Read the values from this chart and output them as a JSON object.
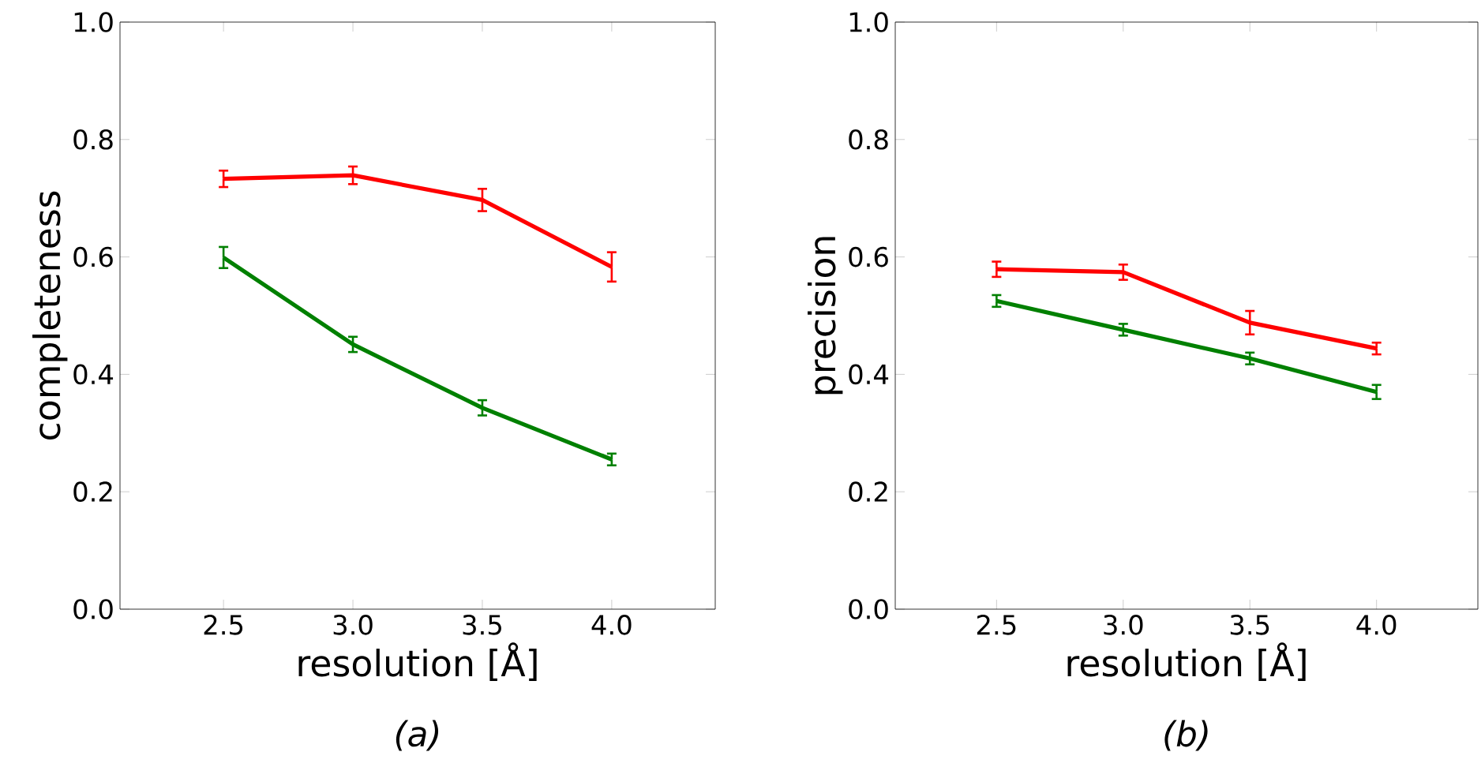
{
  "chart_data": [
    {
      "type": "line",
      "xlabel": "resolution [Å]",
      "ylabel": "completeness",
      "annotations": [
        "(a)"
      ],
      "x": [
        2.5,
        3.0,
        3.5,
        4.0
      ],
      "xlim": [
        2.1,
        4.4
      ],
      "ylim": [
        0,
        1
      ],
      "xticks": [
        {
          "value": 2.5,
          "label": "2.5"
        },
        {
          "value": 3.0,
          "label": "3.0"
        },
        {
          "value": 3.5,
          "label": "3.5"
        },
        {
          "value": 4.0,
          "label": "4.0"
        }
      ],
      "yticks": [
        {
          "value": 0,
          "label": "0.0"
        },
        {
          "value": 0.2,
          "label": "0.2"
        },
        {
          "value": 0.4,
          "label": "0.4"
        },
        {
          "value": 0.6,
          "label": "0.6"
        },
        {
          "value": 0.8,
          "label": "0.8"
        },
        {
          "value": 1.0,
          "label": "1.0"
        }
      ],
      "grid": false,
      "marker": "none",
      "line_style": "solid",
      "series": [
        {
          "color": "#ff0000",
          "values": [
            0.733,
            0.739,
            0.697,
            0.583
          ],
          "errors": [
            0.014,
            0.015,
            0.019,
            0.025
          ]
        },
        {
          "color": "#008000",
          "values": [
            0.599,
            0.451,
            0.343,
            0.255
          ],
          "errors": [
            0.018,
            0.013,
            0.013,
            0.01
          ]
        }
      ]
    },
    {
      "type": "line",
      "xlabel": "resolution [Å]",
      "ylabel": "precision",
      "annotations": [
        "(b)"
      ],
      "x": [
        2.5,
        3.0,
        3.5,
        4.0
      ],
      "xlim": [
        2.1,
        4.4
      ],
      "ylim": [
        0,
        1
      ],
      "xticks": [
        {
          "value": 2.5,
          "label": "2.5"
        },
        {
          "value": 3.0,
          "label": "3.0"
        },
        {
          "value": 3.5,
          "label": "3.5"
        },
        {
          "value": 4.0,
          "label": "4.0"
        }
      ],
      "yticks": [
        {
          "value": 0,
          "label": "0.0"
        },
        {
          "value": 0.2,
          "label": "0.2"
        },
        {
          "value": 0.4,
          "label": "0.4"
        },
        {
          "value": 0.6,
          "label": "0.6"
        },
        {
          "value": 0.8,
          "label": "0.8"
        },
        {
          "value": 1.0,
          "label": "1.0"
        }
      ],
      "grid": false,
      "marker": "none",
      "line_style": "solid",
      "series": [
        {
          "color": "#ff0000",
          "values": [
            0.579,
            0.574,
            0.488,
            0.444
          ],
          "errors": [
            0.013,
            0.013,
            0.02,
            0.01
          ]
        },
        {
          "color": "#008000",
          "values": [
            0.525,
            0.476,
            0.427,
            0.37
          ],
          "errors": [
            0.01,
            0.01,
            0.01,
            0.012
          ]
        }
      ]
    }
  ]
}
